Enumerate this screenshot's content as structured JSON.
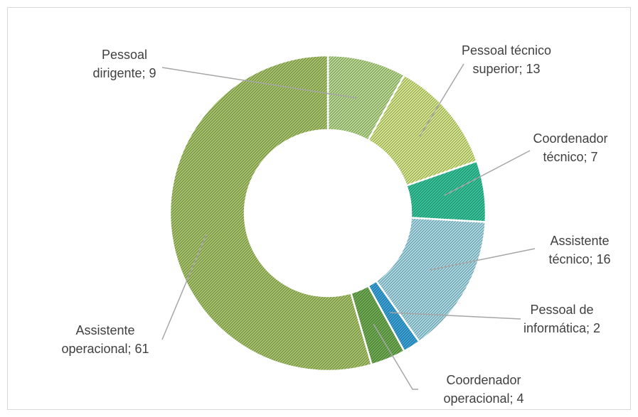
{
  "chart_data": {
    "type": "donut",
    "values": [
      9,
      13,
      7,
      16,
      2,
      4,
      61
    ],
    "value_labels": [
      [
        "Pessoal",
        "dirigente; 9"
      ],
      [
        "Pessoal técnico",
        "superior; 13"
      ],
      [
        "Coordenador",
        "técnico; 7"
      ],
      [
        "Assistente",
        "técnico; 16"
      ],
      [
        "Pessoal de",
        "informática; 2"
      ],
      [
        "Coordenador",
        "operacional; 4"
      ],
      [
        "Assistente",
        "operacional; 61"
      ]
    ],
    "colors": [
      "#b9dc8f",
      "#d6ea8a",
      "#35c79c",
      "#a8dce8",
      "#3aa5dc",
      "#6fae52",
      "#a8c66a"
    ]
  }
}
